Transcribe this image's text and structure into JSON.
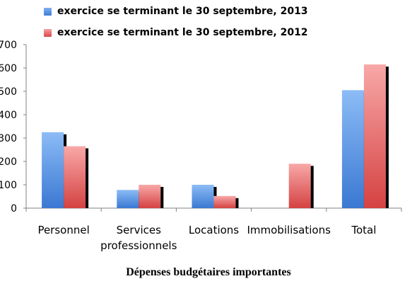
{
  "chart_data": {
    "type": "bar",
    "categories": [
      "Personnel",
      "Services professionnels",
      "Locations",
      "Immobilisations",
      "Total"
    ],
    "series": [
      {
        "name": "exercice se terminant le 30 septembre, 2013",
        "values": [
          325,
          78,
          100,
          0,
          505
        ],
        "color": "#5f96e6"
      },
      {
        "name": "exercice se terminant le 30 septembre, 2012",
        "values": [
          265,
          100,
          52,
          190,
          615
        ],
        "color": "#e25a5a"
      }
    ],
    "xlabel": "Dépenses budgétaires importantes",
    "ylabel": "",
    "ylim": [
      0,
      700
    ],
    "yticks": [
      0,
      100,
      200,
      300,
      400,
      500,
      600,
      700
    ],
    "grid": false,
    "legend_position": "top-left"
  }
}
